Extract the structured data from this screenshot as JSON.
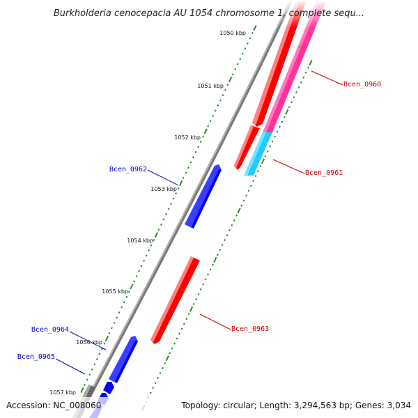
{
  "title": "Burkholderia cenocepacia AU 1054 chromosome 1, complete sequ...",
  "footer": {
    "accession": "Accession: NC_008060",
    "info": "Topology: circular; Length: 3,294,563 bp; Genes: 3,034"
  },
  "colors": {
    "forward_gene": "#ff0000",
    "reverse_gene": "#0000ff",
    "rna_pink": "#ff3399",
    "rna_cyan": "#22ccff",
    "backbone": "#888888",
    "tick": "#2a8a2a",
    "forward_label": "#cc0000",
    "reverse_label": "#0000cc"
  },
  "ticks": [
    "1050 kbp",
    "1051 kbp",
    "1052 kbp",
    "1053 kbp",
    "1054 kbp",
    "1055 kbp",
    "1056 kbp",
    "1057 kbp"
  ],
  "genes": [
    {
      "label": "Bcen_0960",
      "strand": "forward"
    },
    {
      "label": "Bcen_0961",
      "strand": "forward"
    },
    {
      "label": "Bcen_0962",
      "strand": "reverse"
    },
    {
      "label": "Bcen_0963",
      "strand": "forward"
    },
    {
      "label": "Bcen_0964",
      "strand": "reverse"
    },
    {
      "label": "Bcen_0965",
      "strand": "reverse"
    }
  ]
}
